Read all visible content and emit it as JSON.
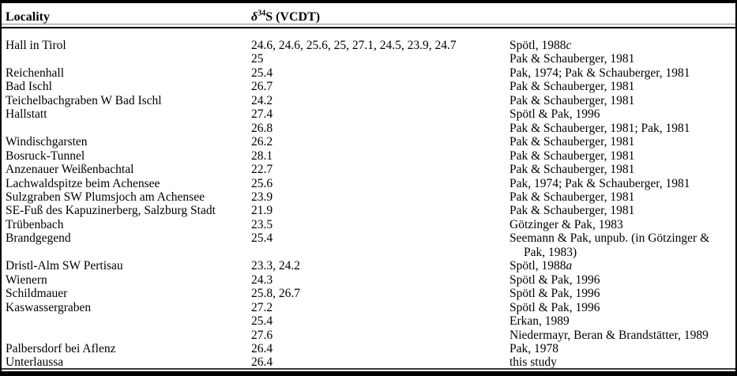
{
  "colors": {
    "text": "#000000",
    "background": "#ffffff",
    "rule": "#000000"
  },
  "table": {
    "columns": [
      {
        "label": "Locality"
      },
      {
        "delta": "δ",
        "sup": "34",
        "rest": "S (VCDT)"
      }
    ],
    "rows": [
      {
        "locality": "Hall in Tirol",
        "value": "24.6, 24.6, 25.6, 25, 27.1, 24.5, 23.9, 24.7",
        "ref": "Spötl, 1988",
        "ref_italic": "c"
      },
      {
        "locality": "",
        "value": "25",
        "ref": "Pak & Schauberger, 1981"
      },
      {
        "locality": "Reichenhall",
        "value": "25.4",
        "ref": "Pak, 1974; Pak & Schauberger, 1981"
      },
      {
        "locality": "Bad Ischl",
        "value": "26.7",
        "ref": "Pak & Schauberger, 1981"
      },
      {
        "locality": "Teichelbachgraben W Bad Ischl",
        "value": "24.2",
        "ref": "Pak & Schauberger, 1981"
      },
      {
        "locality": "Hallstatt",
        "value": "27.4",
        "ref": "Spötl & Pak, 1996"
      },
      {
        "locality": "",
        "value": "26.8",
        "ref": "Pak & Schauberger, 1981; Pak, 1981"
      },
      {
        "locality": "Windischgarsten",
        "value": "26.2",
        "ref": "Pak & Schauberger, 1981"
      },
      {
        "locality": "Bosruck-Tunnel",
        "value": "28.1",
        "ref": "Pak & Schauberger, 1981"
      },
      {
        "locality": "Anzenauer Weißenbachtal",
        "value": "22.7",
        "ref": "Pak & Schauberger, 1981"
      },
      {
        "locality": "Lachwaldspitze beim Achensee",
        "value": "25.6",
        "ref": "Pak, 1974; Pak & Schauberger, 1981"
      },
      {
        "locality": "Sulzgraben SW Plumsjoch am Achensee",
        "value": "23.9",
        "ref": "Pak & Schauberger, 1981"
      },
      {
        "locality": "SE-Fuß des Kapuzinerberg, Salzburg Stadt",
        "value": "21.9",
        "ref": "Pak & Schauberger, 1981"
      },
      {
        "locality": "Trübenbach",
        "value": "23.5",
        "ref": "Götzinger & Pak, 1983"
      },
      {
        "locality": "Brandgegend",
        "value": "25.4",
        "ref": "Seemann & Pak, unpub. (in Götzinger &",
        "ref_line2": "Pak, 1983)"
      },
      {
        "locality": "Dristl-Alm SW Pertisau",
        "value": "23.3, 24.2",
        "ref": "Spötl, 1988",
        "ref_italic": "a"
      },
      {
        "locality": "Wienern",
        "value": "24.3",
        "ref": "Spötl & Pak, 1996"
      },
      {
        "locality": "Schildmauer",
        "value": "25.8, 26.7",
        "ref": "Spötl & Pak, 1996"
      },
      {
        "locality": "Kaswassergraben",
        "value": "27.2",
        "ref": "Spötl & Pak, 1996"
      },
      {
        "locality": "",
        "value": "25.4",
        "ref": "Erkan, 1989"
      },
      {
        "locality": "",
        "value": "27.6",
        "ref": "Niedermayr, Beran & Brandstätter, 1989"
      },
      {
        "locality": "Palbersdorf bei Aflenz",
        "value": "26.4",
        "ref": "Pak, 1978"
      },
      {
        "locality": "Unterlaussa",
        "value": "26.4",
        "ref": "this study"
      }
    ]
  }
}
